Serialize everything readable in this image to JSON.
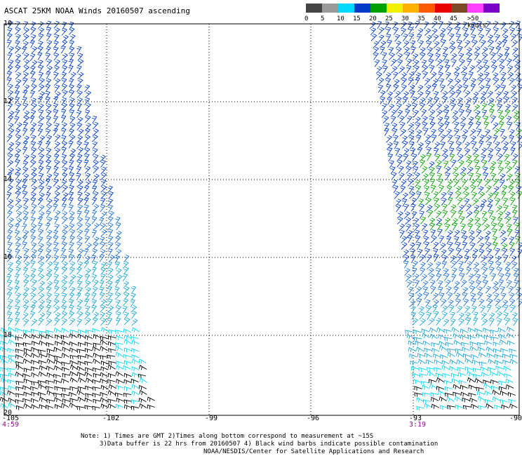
{
  "title": "ASCAT 25KM NOAA Winds 20160507 ascending",
  "legend": {
    "units_label": ">50 knots",
    "bins": [
      {
        "label": "0",
        "color": "#444444"
      },
      {
        "label": "5",
        "color": "#9a9a9a"
      },
      {
        "label": "10",
        "color": "#00d8ff"
      },
      {
        "label": "15",
        "color": "#003cc8"
      },
      {
        "label": "20",
        "color": "#00a000"
      },
      {
        "label": "25",
        "color": "#f0f000"
      },
      {
        "label": "30",
        "color": "#ffb000"
      },
      {
        "label": "35",
        "color": "#ff5a00"
      },
      {
        "label": "40",
        "color": "#e80000"
      },
      {
        "label": "45",
        "color": "#7a4a24"
      },
      {
        "label": "",
        "color": "#ff40ff"
      },
      {
        "label": "",
        "color": "#7a00c8"
      }
    ]
  },
  "axes": {
    "lat_labels": [
      "10",
      "12",
      "14",
      "16",
      "18",
      "20"
    ],
    "lon_labels": [
      "-105",
      "-102",
      "-99",
      "-96",
      "-93",
      "-90"
    ]
  },
  "swath_times": {
    "left": "4:59",
    "right": "3:19"
  },
  "notes": {
    "line1": "Note: 1) Times are GMT 2)Times along bottom correspond to measurement at ~15S",
    "line2": "3)Data buffer is 22 hrs from 20160507 4) Black wind barbs indicate possible contamination",
    "line3": "NOAA/NESDIS/Center for Satellite Applications and Research"
  }
}
